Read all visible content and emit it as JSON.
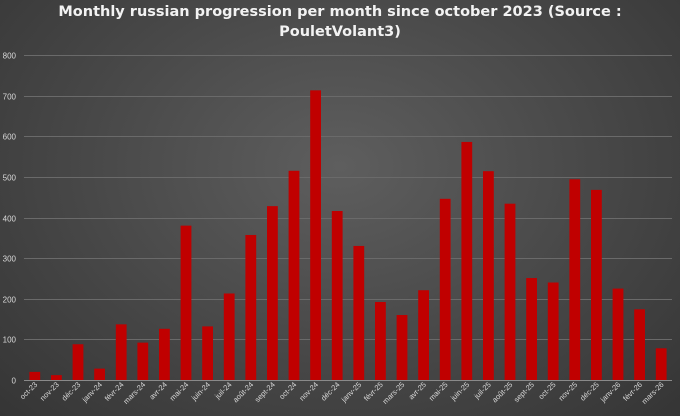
{
  "chart_data": {
    "type": "bar",
    "title_lines": [
      "Monthly russian progression per month since october 2023 (Source :",
      "PouletVolant3)"
    ],
    "xlabel": "",
    "ylabel": "",
    "ylim": [
      0,
      800
    ],
    "yticks": [
      0,
      100,
      200,
      300,
      400,
      500,
      600,
      700,
      800
    ],
    "grid": true,
    "legend": "none",
    "bar_color": "#c00000",
    "categories": [
      "oct-23",
      "nov-23",
      "déc-23",
      "janv-24",
      "févr-24",
      "mars-24",
      "avr-24",
      "mai-24",
      "juin-24",
      "juil-24",
      "août-24",
      "sept-24",
      "oct-24",
      "nov-24",
      "déc-24",
      "janv-25",
      "févr-25",
      "mars-25",
      "avr-25",
      "mai-25",
      "juin-25",
      "juil-25",
      "août-25",
      "sept-25",
      "oct-25",
      "nov-25",
      "déc-25",
      "janv-26",
      "févr-26",
      "mars-26"
    ],
    "values": [
      20,
      12,
      88,
      28,
      137,
      92,
      126,
      380,
      132,
      213,
      357,
      428,
      515,
      713,
      416,
      330,
      192,
      160,
      221,
      446,
      586,
      514,
      434,
      251,
      240,
      494,
      468,
      225,
      174,
      78
    ]
  }
}
